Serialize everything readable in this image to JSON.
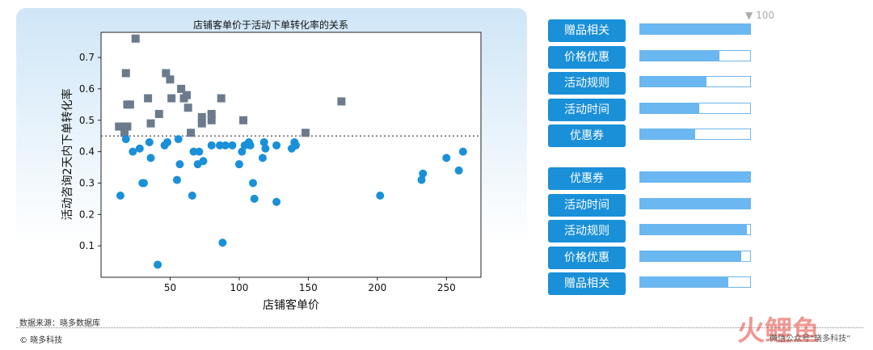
{
  "chart_data": {
    "type": "scatter",
    "title": "店铺客单价于活动下单转化率的关系",
    "xlabel": "店铺客单价",
    "ylabel": "活动咨询2天内下单转化率",
    "xlim": [
      0,
      275
    ],
    "ylim": [
      0,
      0.78
    ],
    "xticks": [
      50,
      100,
      150,
      200,
      250
    ],
    "yticks": [
      0.1,
      0.2,
      0.3,
      0.4,
      0.5,
      0.6,
      0.7
    ],
    "threshold": 0.45,
    "grid": false,
    "series": [
      {
        "marker": "square",
        "color": "#6b7b8c",
        "points": [
          [
            25,
            0.76
          ],
          [
            18,
            0.65
          ],
          [
            47,
            0.65
          ],
          [
            50,
            0.63
          ],
          [
            58,
            0.6
          ],
          [
            62,
            0.58
          ],
          [
            87,
            0.57
          ],
          [
            60,
            0.57
          ],
          [
            51,
            0.57
          ],
          [
            34,
            0.57
          ],
          [
            174,
            0.56
          ],
          [
            19,
            0.55
          ],
          [
            21,
            0.55
          ],
          [
            63,
            0.54
          ],
          [
            80,
            0.52
          ],
          [
            42,
            0.52
          ],
          [
            73,
            0.51
          ],
          [
            80,
            0.5
          ],
          [
            36,
            0.49
          ],
          [
            103,
            0.5
          ],
          [
            73,
            0.49
          ],
          [
            13,
            0.48
          ],
          [
            16,
            0.48
          ],
          [
            19,
            0.48
          ],
          [
            65,
            0.46
          ],
          [
            148,
            0.46
          ],
          [
            17,
            0.46
          ]
        ]
      },
      {
        "marker": "circle",
        "color": "#1a90d8",
        "points": [
          [
            18,
            0.44
          ],
          [
            48,
            0.43
          ],
          [
            56,
            0.44
          ],
          [
            46,
            0.42
          ],
          [
            35,
            0.43
          ],
          [
            28,
            0.41
          ],
          [
            23,
            0.4
          ],
          [
            36,
            0.38
          ],
          [
            67,
            0.4
          ],
          [
            71,
            0.4
          ],
          [
            80,
            0.42
          ],
          [
            86,
            0.42
          ],
          [
            90,
            0.42
          ],
          [
            95,
            0.42
          ],
          [
            104,
            0.42
          ],
          [
            107,
            0.43
          ],
          [
            108,
            0.42
          ],
          [
            118,
            0.43
          ],
          [
            119,
            0.41
          ],
          [
            127,
            0.42
          ],
          [
            138,
            0.41
          ],
          [
            140,
            0.43
          ],
          [
            141,
            0.42
          ],
          [
            102,
            0.4
          ],
          [
            117,
            0.38
          ],
          [
            74,
            0.37
          ],
          [
            70,
            0.36
          ],
          [
            57,
            0.36
          ],
          [
            100,
            0.36
          ],
          [
            55,
            0.31
          ],
          [
            31,
            0.3
          ],
          [
            30,
            0.3
          ],
          [
            110,
            0.3
          ],
          [
            14,
            0.26
          ],
          [
            66,
            0.26
          ],
          [
            111,
            0.25
          ],
          [
            127,
            0.24
          ],
          [
            202,
            0.26
          ],
          [
            232,
            0.31
          ],
          [
            233,
            0.33
          ],
          [
            250,
            0.38
          ],
          [
            259,
            0.34
          ],
          [
            262,
            0.4
          ],
          [
            88,
            0.11
          ],
          [
            41,
            0.04
          ]
        ]
      }
    ]
  },
  "bars_top": {
    "legend_value": "100",
    "items": [
      {
        "label": "赠品相关",
        "fill": 1.0
      },
      {
        "label": "价格优惠",
        "fill": 0.72
      },
      {
        "label": "活动规则",
        "fill": 0.6
      },
      {
        "label": "活动时间",
        "fill": 0.54
      },
      {
        "label": "优惠券",
        "fill": 0.5
      }
    ]
  },
  "bars_bottom": {
    "items": [
      {
        "label": "优惠券",
        "fill": 1.0
      },
      {
        "label": "活动时间",
        "fill": 1.0
      },
      {
        "label": "活动规则",
        "fill": 0.97
      },
      {
        "label": "价格优惠",
        "fill": 0.92
      },
      {
        "label": "赠品相关",
        "fill": 0.8
      }
    ]
  },
  "footer": {
    "source": "数据来源：晓多数据库",
    "copyright": "© 晓多科技",
    "wechat": "微信公众号“晓多科技”",
    "watermark": "火鲤鱼"
  }
}
